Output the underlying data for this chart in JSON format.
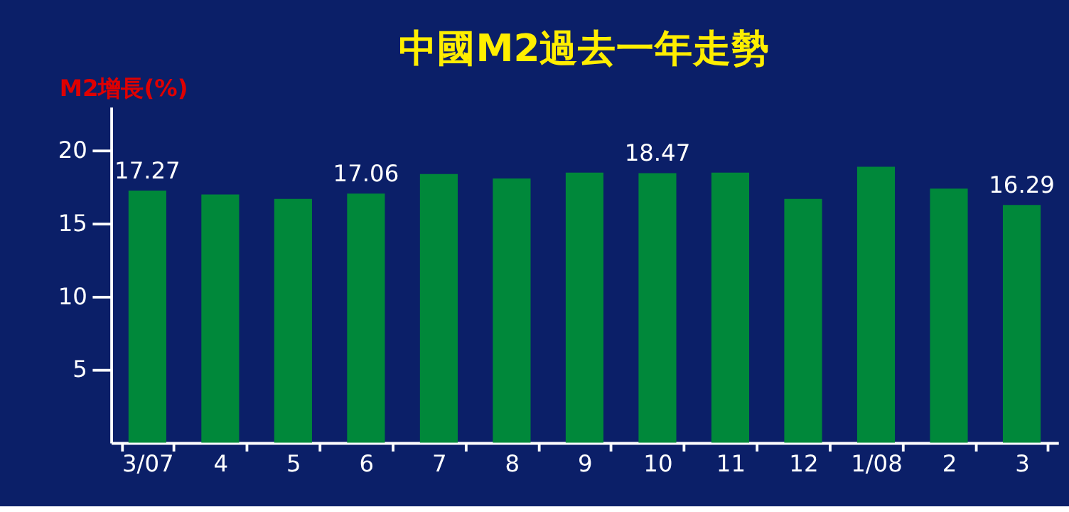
{
  "chart_data": {
    "type": "bar",
    "title": "中國M2過去一年走勢",
    "ylabel": "M2增長(%)",
    "categories": [
      "3/07",
      "4",
      "5",
      "6",
      "7",
      "8",
      "9",
      "10",
      "11",
      "12",
      "1/08",
      "2",
      "3"
    ],
    "values": [
      17.27,
      17.0,
      16.7,
      17.06,
      18.4,
      18.1,
      18.5,
      18.47,
      18.5,
      16.7,
      18.9,
      17.4,
      16.29
    ],
    "value_labels": [
      "17.27",
      null,
      null,
      "17.06",
      null,
      null,
      null,
      "18.47",
      null,
      null,
      null,
      null,
      "16.29"
    ],
    "color": "#00883a",
    "ylim": [
      0,
      23
    ],
    "yticks": [
      5,
      10,
      15,
      20
    ],
    "grid": false
  }
}
